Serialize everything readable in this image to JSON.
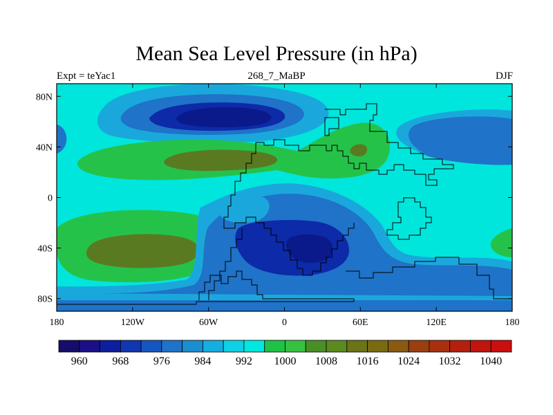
{
  "title": "Mean Sea Level Pressure (in hPa)",
  "subtitle_left": "Expt = teYac1",
  "subtitle_center": "268_7_MaBP",
  "subtitle_right": "DJF",
  "x_ticks": [
    "180",
    "120W",
    "60W",
    "0",
    "60E",
    "120E",
    "180"
  ],
  "y_ticks": [
    "80N",
    "40N",
    "0",
    "40S",
    "80S"
  ],
  "colorbar": {
    "labels": [
      "960",
      "968",
      "976",
      "984",
      "992",
      "1000",
      "1008",
      "1016",
      "1024",
      "1032",
      "1040"
    ],
    "colors": [
      "#160d6b",
      "#1a0f87",
      "#0d1f9e",
      "#1036b0",
      "#1656c2",
      "#1f73c8",
      "#1b8ed0",
      "#16aee0",
      "#0ed0e6",
      "#00e8e0",
      "#1ec247",
      "#34c23f",
      "#4a8f26",
      "#5c8a1f",
      "#6b7416",
      "#7a6b12",
      "#8b5a10",
      "#9b3e10",
      "#a8300f",
      "#b4200e",
      "#c0160e",
      "#cc0e0e"
    ]
  },
  "map_colors": {
    "background": "#00e6dc",
    "blue_light": "#1aa8dc",
    "blue_mid": "#1f73c8",
    "blue_dark": "#0d2aa8",
    "blue_deep": "#0a1a8a",
    "green": "#25c24a",
    "olive": "#5a7a22",
    "coast": "#000000"
  }
}
